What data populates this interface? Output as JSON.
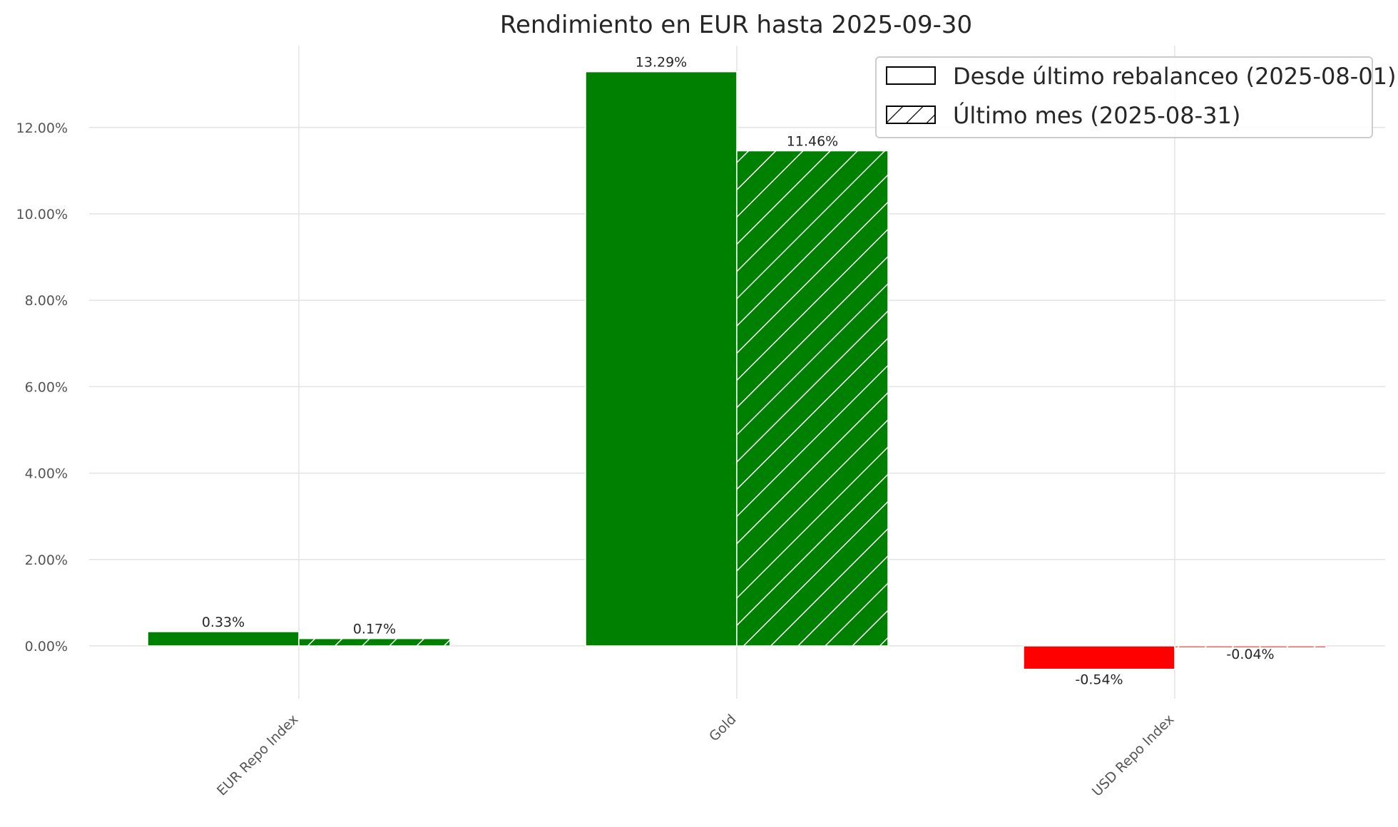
{
  "chart_data": {
    "type": "bar",
    "title": "Rendimiento en EUR hasta 2025-09-30",
    "xlabel": "",
    "ylabel": "",
    "categories": [
      "EUR Repo Index",
      "Gold",
      "USD Repo Index"
    ],
    "series": [
      {
        "name": "Desde último rebalanceo (2025-08-01)",
        "values": [
          0.33,
          13.29,
          -0.54
        ],
        "labels": [
          "0.33%",
          "13.29%",
          "-0.54%"
        ],
        "hatch": "none"
      },
      {
        "name": "Último mes (2025-08-31)",
        "values": [
          0.17,
          11.46,
          -0.04
        ],
        "labels": [
          "0.17%",
          "11.46%",
          "-0.04%"
        ],
        "hatch": "diagonal"
      }
    ],
    "ylim": [
      -1.2,
      14.0
    ],
    "yticks": [
      0,
      2,
      4,
      6,
      8,
      10,
      12
    ],
    "ytick_labels": [
      "0.00%",
      "2.00%",
      "4.00%",
      "6.00%",
      "8.00%",
      "10.00%",
      "12.00%"
    ],
    "grid": true,
    "legend_position": "top-right",
    "colors": {
      "positive": "#008000",
      "negative": "#ff0000"
    }
  }
}
